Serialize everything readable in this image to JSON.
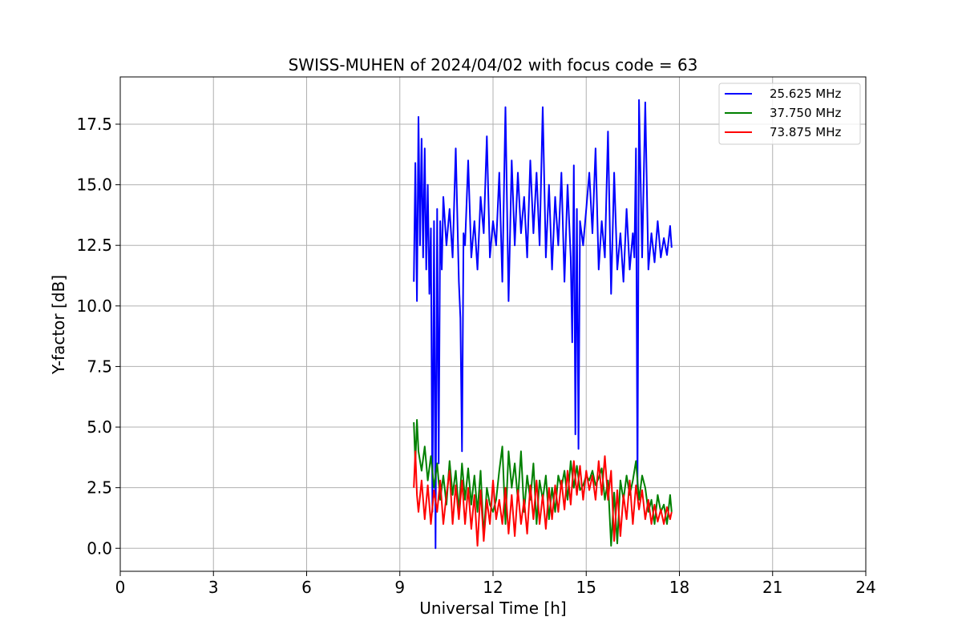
{
  "chart_data": {
    "type": "line",
    "title": "SWISS-MUHEN of 2024/04/02 with focus code = 63",
    "xlabel": "Universal Time [h]",
    "ylabel": "Y-factor [dB]",
    "xlim": [
      0,
      24
    ],
    "ylim": [
      -0.95,
      19.45
    ],
    "x_ticks": [
      0,
      3,
      6,
      9,
      12,
      15,
      18,
      21,
      24
    ],
    "y_ticks": [
      0.0,
      2.5,
      5.0,
      7.5,
      10.0,
      12.5,
      15.0,
      17.5
    ],
    "x_tick_labels": [
      "0",
      "3",
      "6",
      "9",
      "12",
      "15",
      "18",
      "21",
      "24"
    ],
    "y_tick_labels": [
      "0.0",
      "2.5",
      "5.0",
      "7.5",
      "10.0",
      "12.5",
      "15.0",
      "17.5"
    ],
    "grid": true,
    "legend_position": "top-right",
    "series": [
      {
        "name": "25.625 MHz",
        "color": "#0000ff",
        "x": [
          9.45,
          9.5,
          9.55,
          9.6,
          9.65,
          9.7,
          9.75,
          9.8,
          9.85,
          9.9,
          9.95,
          10.0,
          10.05,
          10.1,
          10.15,
          10.2,
          10.25,
          10.3,
          10.35,
          10.4,
          10.5,
          10.6,
          10.7,
          10.8,
          10.9,
          10.95,
          11.0,
          11.05,
          11.1,
          11.2,
          11.3,
          11.4,
          11.5,
          11.6,
          11.7,
          11.8,
          11.9,
          12.0,
          12.1,
          12.2,
          12.3,
          12.4,
          12.5,
          12.6,
          12.7,
          12.8,
          12.9,
          13.0,
          13.1,
          13.2,
          13.3,
          13.4,
          13.5,
          13.6,
          13.7,
          13.8,
          13.9,
          14.0,
          14.1,
          14.2,
          14.3,
          14.4,
          14.5,
          14.55,
          14.6,
          14.65,
          14.7,
          14.75,
          14.8,
          14.9,
          15.0,
          15.1,
          15.2,
          15.3,
          15.4,
          15.5,
          15.6,
          15.7,
          15.8,
          15.9,
          16.0,
          16.1,
          16.2,
          16.3,
          16.4,
          16.5,
          16.55,
          16.6,
          16.65,
          16.7,
          16.8,
          16.9,
          17.0,
          17.1,
          17.2,
          17.3,
          17.4,
          17.5,
          17.6,
          17.7,
          17.75
        ],
        "y": [
          11.0,
          15.9,
          10.2,
          17.8,
          12.5,
          16.9,
          12.0,
          16.5,
          11.5,
          15.0,
          10.5,
          13.2,
          1.5,
          13.5,
          0.0,
          14.0,
          3.5,
          13.5,
          11.5,
          14.5,
          12.5,
          14.0,
          12.0,
          16.5,
          11.0,
          9.5,
          4.0,
          13.0,
          12.5,
          16.0,
          12.0,
          13.5,
          11.5,
          14.5,
          13.0,
          17.0,
          12.0,
          13.5,
          12.5,
          15.5,
          11.0,
          18.2,
          10.2,
          16.0,
          12.5,
          15.5,
          13.0,
          14.5,
          12.0,
          16.0,
          13.0,
          15.5,
          12.5,
          18.2,
          12.0,
          15.0,
          11.5,
          14.5,
          12.5,
          15.5,
          11.0,
          15.0,
          12.0,
          8.5,
          15.8,
          4.7,
          14.0,
          4.1,
          13.5,
          12.5,
          14.0,
          15.5,
          13.0,
          16.5,
          11.5,
          13.5,
          12.0,
          17.2,
          10.5,
          15.5,
          11.5,
          13.0,
          11.0,
          14.0,
          11.5,
          13.0,
          12.0,
          16.5,
          2.5,
          18.5,
          12.0,
          18.4,
          11.5,
          13.0,
          11.8,
          13.5,
          12.0,
          12.8,
          12.1,
          13.3,
          12.4
        ]
      },
      {
        "name": "37.750 MHz",
        "color": "#008000",
        "x": [
          9.45,
          9.5,
          9.55,
          9.6,
          9.7,
          9.8,
          9.9,
          10.0,
          10.1,
          10.2,
          10.3,
          10.4,
          10.5,
          10.6,
          10.7,
          10.8,
          10.9,
          11.0,
          11.1,
          11.2,
          11.3,
          11.4,
          11.5,
          11.6,
          11.7,
          11.8,
          11.9,
          12.0,
          12.1,
          12.2,
          12.3,
          12.4,
          12.5,
          12.6,
          12.7,
          12.8,
          12.9,
          13.0,
          13.1,
          13.2,
          13.3,
          13.4,
          13.5,
          13.6,
          13.7,
          13.8,
          13.9,
          14.0,
          14.1,
          14.2,
          14.3,
          14.4,
          14.5,
          14.6,
          14.7,
          14.8,
          14.9,
          15.0,
          15.1,
          15.2,
          15.3,
          15.4,
          15.5,
          15.6,
          15.7,
          15.8,
          15.9,
          16.0,
          16.1,
          16.2,
          16.3,
          16.4,
          16.5,
          16.6,
          16.7,
          16.8,
          16.9,
          17.0,
          17.1,
          17.2,
          17.3,
          17.4,
          17.5,
          17.6,
          17.7,
          17.75
        ],
        "y": [
          5.2,
          3.5,
          5.3,
          4.0,
          3.2,
          4.2,
          2.8,
          3.8,
          2.5,
          3.5,
          2.0,
          3.0,
          1.8,
          3.6,
          2.2,
          3.2,
          1.5,
          3.5,
          2.0,
          3.3,
          1.8,
          3.0,
          1.5,
          3.2,
          0.5,
          2.5,
          1.8,
          1.5,
          2.0,
          3.2,
          4.2,
          1.0,
          4.0,
          2.5,
          3.5,
          2.0,
          4.0,
          1.5,
          3.0,
          2.0,
          3.5,
          1.0,
          2.8,
          2.0,
          3.0,
          1.2,
          2.5,
          1.5,
          3.0,
          2.5,
          3.2,
          2.0,
          3.6,
          2.5,
          3.4,
          2.4,
          2.6,
          3.0,
          2.8,
          3.2,
          2.6,
          2.9,
          3.3,
          2.0,
          2.8,
          0.1,
          2.3,
          0.2,
          2.8,
          2.0,
          3.0,
          2.2,
          2.8,
          3.6,
          2.0,
          3.0,
          2.5,
          1.5,
          2.0,
          1.0,
          2.2,
          1.5,
          1.8,
          1.0,
          2.2,
          1.5
        ]
      },
      {
        "name": "73.875 MHz",
        "color": "#ff0000",
        "x": [
          9.45,
          9.5,
          9.55,
          9.6,
          9.7,
          9.8,
          9.9,
          10.0,
          10.1,
          10.2,
          10.3,
          10.4,
          10.5,
          10.6,
          10.7,
          10.8,
          10.9,
          11.0,
          11.1,
          11.2,
          11.3,
          11.4,
          11.5,
          11.6,
          11.7,
          11.8,
          11.9,
          12.0,
          12.1,
          12.2,
          12.3,
          12.4,
          12.5,
          12.6,
          12.7,
          12.8,
          12.9,
          13.0,
          13.1,
          13.2,
          13.3,
          13.4,
          13.5,
          13.6,
          13.7,
          13.8,
          13.9,
          14.0,
          14.1,
          14.2,
          14.3,
          14.4,
          14.5,
          14.6,
          14.7,
          14.8,
          14.9,
          15.0,
          15.1,
          15.2,
          15.3,
          15.4,
          15.5,
          15.6,
          15.7,
          15.8,
          15.9,
          16.0,
          16.1,
          16.2,
          16.3,
          16.4,
          16.5,
          16.6,
          16.7,
          16.8,
          16.9,
          17.0,
          17.1,
          17.2,
          17.3,
          17.4,
          17.5,
          17.6,
          17.7,
          17.75
        ],
        "y": [
          2.5,
          4.0,
          2.2,
          1.5,
          2.8,
          1.2,
          2.6,
          1.0,
          2.4,
          1.5,
          2.8,
          1.0,
          2.2,
          3.2,
          1.0,
          2.6,
          1.2,
          2.8,
          1.0,
          2.5,
          0.8,
          2.2,
          0.1,
          2.4,
          0.3,
          2.0,
          1.0,
          2.8,
          1.2,
          2.0,
          1.0,
          2.5,
          0.6,
          2.2,
          0.5,
          2.4,
          1.0,
          2.0,
          0.6,
          2.6,
          1.2,
          2.8,
          1.0,
          2.2,
          0.8,
          2.5,
          1.2,
          2.6,
          1.5,
          2.8,
          1.6,
          3.2,
          1.8,
          3.6,
          2.2,
          3.4,
          2.0,
          3.2,
          2.4,
          3.0,
          2.0,
          3.6,
          2.2,
          3.8,
          2.0,
          3.2,
          0.3,
          2.4,
          0.5,
          2.2,
          1.2,
          2.8,
          1.0,
          2.6,
          1.6,
          2.4,
          1.2,
          2.0,
          1.0,
          1.8,
          1.1,
          1.6,
          1.0,
          1.7,
          1.2,
          1.5
        ]
      }
    ]
  }
}
